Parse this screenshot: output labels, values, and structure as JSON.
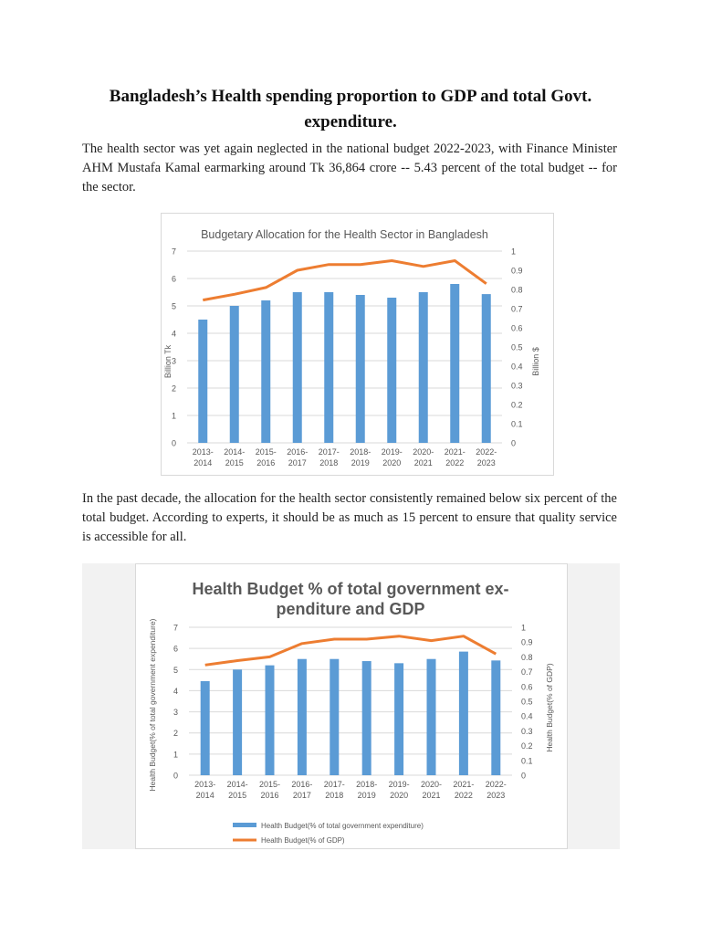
{
  "heading": "Bangladesh’s Health spending proportion to GDP and total   Govt. expenditure.",
  "paragraph1": "The health sector was yet again neglected in the national budget 2022-2023, with Finance Minister AHM Mustafa Kamal earmarking around Tk 36,864 crore -- 5.43 percent of the total budget -- for the sector.",
  "paragraph2": "In the past decade, the allocation for the health sector consistently remained below six percent of the total budget. According to experts, it should be as much as 15 percent to ensure that quality service is accessible for all.",
  "colors": {
    "bar": "#5b9bd5",
    "line": "#ed7d31",
    "grid": "#d9d9d9",
    "text": "#595959"
  },
  "chart_data": [
    {
      "type": "bar",
      "title": "Budgetary Allocation for the Health Sector in Bangladesh",
      "categories": [
        [
          "2013-",
          "2014"
        ],
        [
          "2014-",
          "2015"
        ],
        [
          "2015-",
          "2016"
        ],
        [
          "2016-",
          "2017"
        ],
        [
          "2017-",
          "2018"
        ],
        [
          "2018-",
          "2019"
        ],
        [
          "2019-",
          "2020"
        ],
        [
          "2020-",
          "2021"
        ],
        [
          "2021-",
          "2022"
        ],
        [
          "2022-",
          "2023"
        ]
      ],
      "series": [
        {
          "type": "bar",
          "axis": "left",
          "values": [
            4.5,
            5.0,
            5.2,
            5.5,
            5.5,
            5.4,
            5.3,
            5.5,
            5.8,
            5.43
          ]
        },
        {
          "type": "line",
          "axis": "right",
          "values": [
            0.745,
            0.775,
            0.81,
            0.9,
            0.93,
            0.93,
            0.95,
            0.92,
            0.95,
            0.83
          ]
        }
      ],
      "ylabel": "Billion Tk",
      "y2label": "Billion $",
      "ylim": [
        0,
        7
      ],
      "y2lim": [
        0,
        1
      ],
      "yticks": [
        "0",
        "1",
        "2",
        "3",
        "4",
        "5",
        "6",
        "7"
      ],
      "y2ticks": [
        "0",
        "0.1",
        "0.2",
        "0.3",
        "0.4",
        "0.5",
        "0.6",
        "0.7",
        "0.8",
        "0.9",
        "1"
      ],
      "grid": true,
      "legend": "none"
    },
    {
      "type": "bar",
      "title": [
        "Health Budget % of total government ex-",
        "penditure and GDP"
      ],
      "categories": [
        [
          "2013-",
          "2014"
        ],
        [
          "2014-",
          "2015"
        ],
        [
          "2015-",
          "2016"
        ],
        [
          "2016-",
          "2017"
        ],
        [
          "2017-",
          "2018"
        ],
        [
          "2018-",
          "2019"
        ],
        [
          "2019-",
          "2020"
        ],
        [
          "2020-",
          "2021"
        ],
        [
          "2021-",
          "2022"
        ],
        [
          "2022-",
          "2023"
        ]
      ],
      "series": [
        {
          "type": "bar",
          "axis": "left",
          "name": "Health Budget(% of total government expenditure)",
          "values": [
            4.45,
            5.0,
            5.2,
            5.5,
            5.5,
            5.4,
            5.3,
            5.5,
            5.85,
            5.43
          ]
        },
        {
          "type": "line",
          "axis": "right",
          "name": "Health Budget(% of GDP)",
          "values": [
            0.745,
            0.775,
            0.8,
            0.89,
            0.92,
            0.92,
            0.94,
            0.91,
            0.94,
            0.82
          ]
        }
      ],
      "ylabel": "Health Budget(% of total government expenditure)",
      "y2label": "Health Budget(% of GDP)",
      "ylim": [
        0,
        7
      ],
      "y2lim": [
        0,
        1
      ],
      "yticks": [
        "0",
        "1",
        "2",
        "3",
        "4",
        "5",
        "6",
        "7"
      ],
      "y2ticks": [
        "0",
        "0.1",
        "0.2",
        "0.3",
        "0.4",
        "0.5",
        "0.6",
        "0.7",
        "0.8",
        "0.9",
        "1"
      ],
      "grid": true,
      "legend": "bottom"
    }
  ]
}
